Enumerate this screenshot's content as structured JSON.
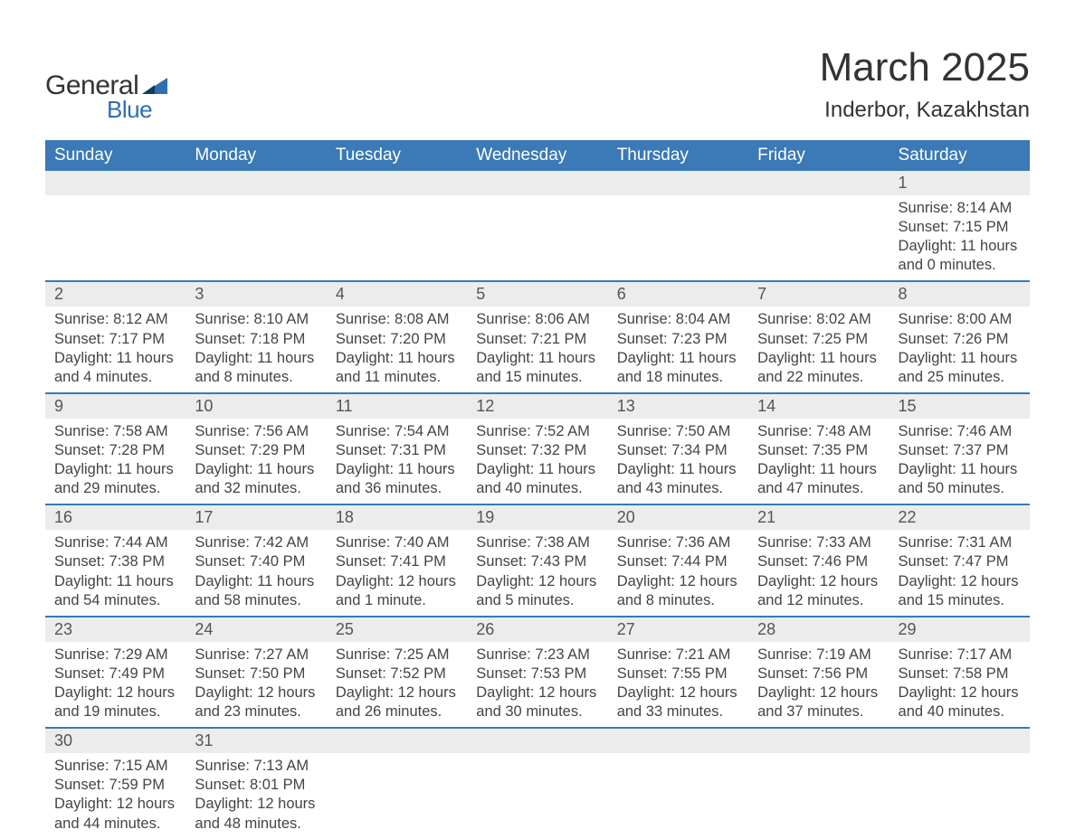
{
  "logo": {
    "general": "General",
    "blue": "Blue",
    "sail_color": "#2f6fb0"
  },
  "title": "March 2025",
  "subtitle": "Inderbor, Kazakhstan",
  "colors": {
    "header_bg": "#3b79b7",
    "header_text": "#ffffff",
    "daynum_bg": "#ececec",
    "body_text": "#444444",
    "rule": "#3b79b7",
    "background": "#ffffff"
  },
  "fonts": {
    "title_size": 44,
    "subtitle_size": 24,
    "th_size": 19,
    "body_size": 16.5
  },
  "day_headers": [
    "Sunday",
    "Monday",
    "Tuesday",
    "Wednesday",
    "Thursday",
    "Friday",
    "Saturday"
  ],
  "weeks": [
    [
      null,
      null,
      null,
      null,
      null,
      null,
      {
        "n": "1",
        "sunrise": "8:14 AM",
        "sunset": "7:15 PM",
        "daylight": "11 hours and 0 minutes."
      }
    ],
    [
      {
        "n": "2",
        "sunrise": "8:12 AM",
        "sunset": "7:17 PM",
        "daylight": "11 hours and 4 minutes."
      },
      {
        "n": "3",
        "sunrise": "8:10 AM",
        "sunset": "7:18 PM",
        "daylight": "11 hours and 8 minutes."
      },
      {
        "n": "4",
        "sunrise": "8:08 AM",
        "sunset": "7:20 PM",
        "daylight": "11 hours and 11 minutes."
      },
      {
        "n": "5",
        "sunrise": "8:06 AM",
        "sunset": "7:21 PM",
        "daylight": "11 hours and 15 minutes."
      },
      {
        "n": "6",
        "sunrise": "8:04 AM",
        "sunset": "7:23 PM",
        "daylight": "11 hours and 18 minutes."
      },
      {
        "n": "7",
        "sunrise": "8:02 AM",
        "sunset": "7:25 PM",
        "daylight": "11 hours and 22 minutes."
      },
      {
        "n": "8",
        "sunrise": "8:00 AM",
        "sunset": "7:26 PM",
        "daylight": "11 hours and 25 minutes."
      }
    ],
    [
      {
        "n": "9",
        "sunrise": "7:58 AM",
        "sunset": "7:28 PM",
        "daylight": "11 hours and 29 minutes."
      },
      {
        "n": "10",
        "sunrise": "7:56 AM",
        "sunset": "7:29 PM",
        "daylight": "11 hours and 32 minutes."
      },
      {
        "n": "11",
        "sunrise": "7:54 AM",
        "sunset": "7:31 PM",
        "daylight": "11 hours and 36 minutes."
      },
      {
        "n": "12",
        "sunrise": "7:52 AM",
        "sunset": "7:32 PM",
        "daylight": "11 hours and 40 minutes."
      },
      {
        "n": "13",
        "sunrise": "7:50 AM",
        "sunset": "7:34 PM",
        "daylight": "11 hours and 43 minutes."
      },
      {
        "n": "14",
        "sunrise": "7:48 AM",
        "sunset": "7:35 PM",
        "daylight": "11 hours and 47 minutes."
      },
      {
        "n": "15",
        "sunrise": "7:46 AM",
        "sunset": "7:37 PM",
        "daylight": "11 hours and 50 minutes."
      }
    ],
    [
      {
        "n": "16",
        "sunrise": "7:44 AM",
        "sunset": "7:38 PM",
        "daylight": "11 hours and 54 minutes."
      },
      {
        "n": "17",
        "sunrise": "7:42 AM",
        "sunset": "7:40 PM",
        "daylight": "11 hours and 58 minutes."
      },
      {
        "n": "18",
        "sunrise": "7:40 AM",
        "sunset": "7:41 PM",
        "daylight": "12 hours and 1 minute."
      },
      {
        "n": "19",
        "sunrise": "7:38 AM",
        "sunset": "7:43 PM",
        "daylight": "12 hours and 5 minutes."
      },
      {
        "n": "20",
        "sunrise": "7:36 AM",
        "sunset": "7:44 PM",
        "daylight": "12 hours and 8 minutes."
      },
      {
        "n": "21",
        "sunrise": "7:33 AM",
        "sunset": "7:46 PM",
        "daylight": "12 hours and 12 minutes."
      },
      {
        "n": "22",
        "sunrise": "7:31 AM",
        "sunset": "7:47 PM",
        "daylight": "12 hours and 15 minutes."
      }
    ],
    [
      {
        "n": "23",
        "sunrise": "7:29 AM",
        "sunset": "7:49 PM",
        "daylight": "12 hours and 19 minutes."
      },
      {
        "n": "24",
        "sunrise": "7:27 AM",
        "sunset": "7:50 PM",
        "daylight": "12 hours and 23 minutes."
      },
      {
        "n": "25",
        "sunrise": "7:25 AM",
        "sunset": "7:52 PM",
        "daylight": "12 hours and 26 minutes."
      },
      {
        "n": "26",
        "sunrise": "7:23 AM",
        "sunset": "7:53 PM",
        "daylight": "12 hours and 30 minutes."
      },
      {
        "n": "27",
        "sunrise": "7:21 AM",
        "sunset": "7:55 PM",
        "daylight": "12 hours and 33 minutes."
      },
      {
        "n": "28",
        "sunrise": "7:19 AM",
        "sunset": "7:56 PM",
        "daylight": "12 hours and 37 minutes."
      },
      {
        "n": "29",
        "sunrise": "7:17 AM",
        "sunset": "7:58 PM",
        "daylight": "12 hours and 40 minutes."
      }
    ],
    [
      {
        "n": "30",
        "sunrise": "7:15 AM",
        "sunset": "7:59 PM",
        "daylight": "12 hours and 44 minutes."
      },
      {
        "n": "31",
        "sunrise": "7:13 AM",
        "sunset": "8:01 PM",
        "daylight": "12 hours and 48 minutes."
      },
      null,
      null,
      null,
      null,
      null
    ]
  ],
  "labels": {
    "sunrise": "Sunrise: ",
    "sunset": "Sunset: ",
    "daylight": "Daylight: "
  }
}
